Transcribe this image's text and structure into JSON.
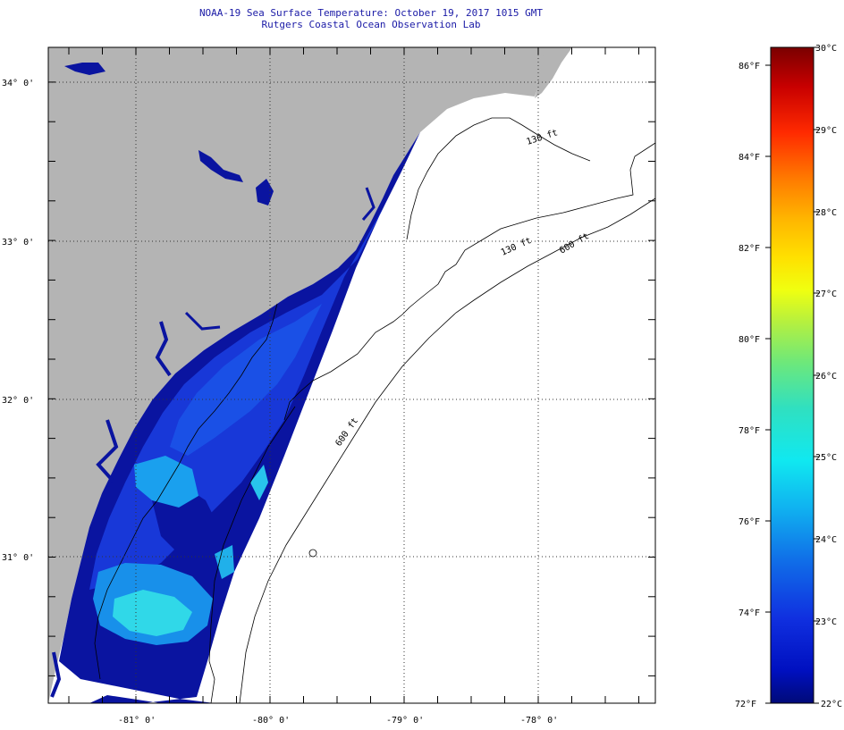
{
  "header": {
    "title": "NOAA-19 Sea Surface Temperature:  October 19, 2017 1015 GMT",
    "subtitle": "Rutgers Coastal Ocean Observation Lab"
  },
  "map": {
    "lat_labels": [
      "34° 0'",
      "33° 0'",
      "32° 0'",
      "31° 0'"
    ],
    "lon_labels": [
      "-81° 0'",
      "-80° 0'",
      "-79° 0'",
      "-78° 0'"
    ],
    "contour_labels": [
      "130 ft",
      "600 ft",
      "600 ft"
    ],
    "land_color": "#b4b4b4",
    "water_color": "#ffffff",
    "grid_style": "dotted"
  },
  "colorbar": {
    "fahrenheit_labels": [
      "86°F",
      "84°F",
      "82°F",
      "80°F",
      "78°F",
      "76°F",
      "74°F",
      "72°F"
    ],
    "celsius_labels": [
      "30°C",
      "29°C",
      "28°C",
      "27°C",
      "26°C",
      "25°C",
      "24°C",
      "23°C",
      "22°C"
    ],
    "colors": [
      "#7a0000",
      "#c80000",
      "#ff2a00",
      "#ff7a00",
      "#ffb400",
      "#ffe000",
      "#f0ff10",
      "#b4f040",
      "#6ee87a",
      "#30e0c0",
      "#10e8f0",
      "#10b4f0",
      "#1070e8",
      "#1030e0",
      "#0010c0",
      "#000a78"
    ]
  }
}
